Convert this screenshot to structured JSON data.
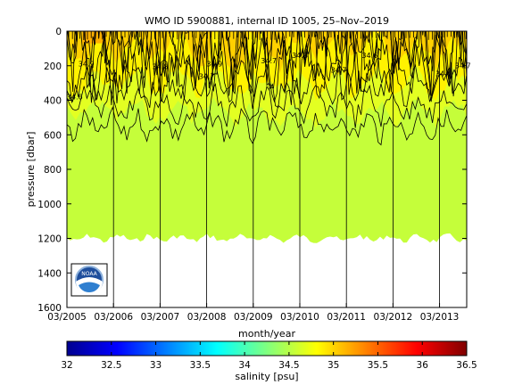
{
  "chart_data": {
    "type": "heatmap",
    "title": "WMO ID 5900881, internal ID 1005, 25–Nov–2019",
    "xlabel": "month/year",
    "ylabel": "pressure [dbar]",
    "x_tick_labels": [
      "03/2005",
      "03/2006",
      "03/2007",
      "03/2008",
      "03/2009",
      "03/2010",
      "03/2011",
      "03/2012",
      "03/2013"
    ],
    "x_range": [
      "2005-03",
      "2013-10"
    ],
    "y_ticks": [
      0,
      200,
      400,
      600,
      800,
      1000,
      1200,
      1400,
      1600
    ],
    "ylim": [
      0,
      1600
    ],
    "y_reversed": true,
    "vertical_lines_at": [
      "2006-03",
      "2007-03",
      "2008-03",
      "2009-03",
      "2010-03",
      "2011-03",
      "2012-03",
      "2013-03"
    ],
    "max_profile_pressure": 1200,
    "contour_levels": [
      34.5,
      34.6,
      34.7,
      34.8,
      34.9,
      35.0
    ],
    "contour_labels": [
      {
        "text": "34.9",
        "date": "2005-08",
        "p": 205
      },
      {
        "text": "34.9",
        "date": "2008-05",
        "p": 205
      },
      {
        "text": "34.8",
        "date": "2007-03",
        "p": 220
      },
      {
        "text": "34.7",
        "date": "2008-03",
        "p": 275
      },
      {
        "text": "34.7",
        "date": "2009-07",
        "p": 185
      },
      {
        "text": "34.8",
        "date": "2010-03",
        "p": 155
      },
      {
        "text": "34.7",
        "date": "2011-01",
        "p": 240
      },
      {
        "text": "34.6",
        "date": "2011-09",
        "p": 155
      },
      {
        "text": "34.6",
        "date": "2013-04",
        "p": 260
      },
      {
        "text": "34.7",
        "date": "2013-09",
        "p": 215
      },
      {
        "text": "34.6",
        "date": "2005-05",
        "p": 395
      }
    ],
    "colorbar": {
      "label": "salinity [psu]",
      "range": [
        32,
        36.5
      ],
      "tick_labels": [
        "32",
        "32.5",
        "33",
        "33.5",
        "34",
        "34.5",
        "35",
        "35.5",
        "36",
        "36.5"
      ]
    },
    "colors": {
      "deep": "#c5fe3a",
      "mid": "#e3ff22",
      "upper": "#fff200",
      "surface": "#ffd000",
      "max": "#ffb000"
    },
    "logo_text": "NOAA"
  }
}
